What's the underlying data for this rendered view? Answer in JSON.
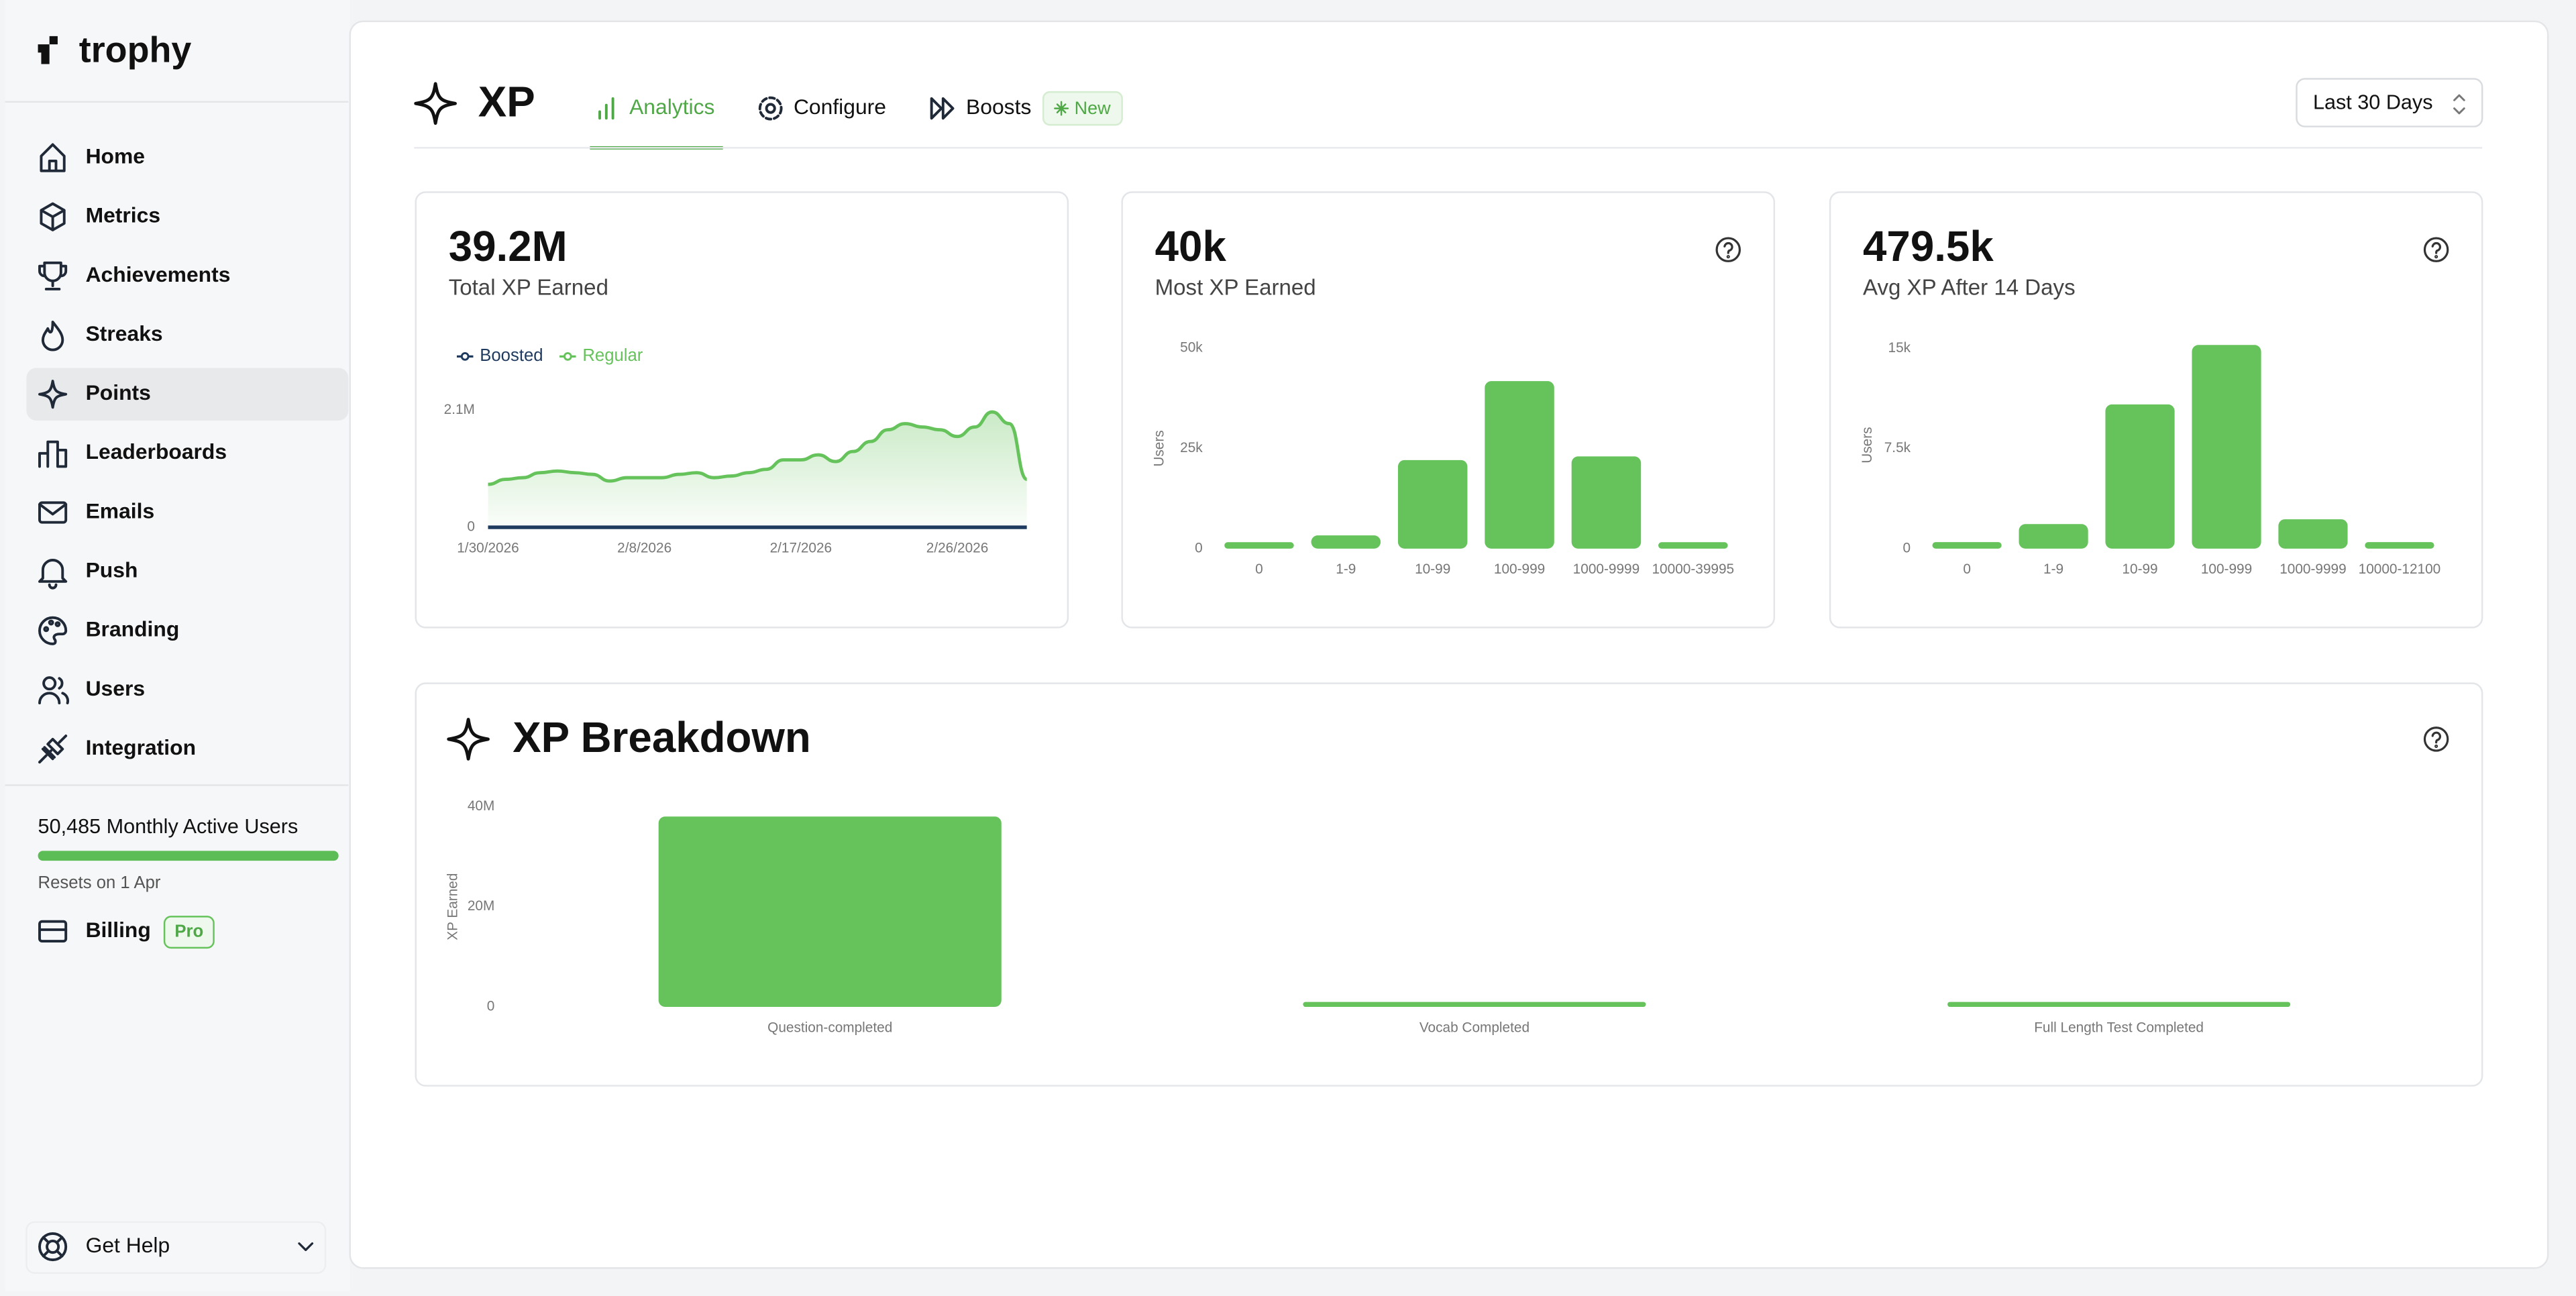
{
  "sidebar": {
    "logo": "trophy",
    "nav": [
      "Home",
      "Metrics",
      "Achievements",
      "Streaks",
      "Points",
      "Leaderboards",
      "Emails",
      "Push",
      "Branding",
      "Users",
      "Integration"
    ],
    "mau": "50,485 Monthly Active Users",
    "resets": "Resets on 1 Apr",
    "billing": "Billing",
    "billing_badge": "Pro",
    "help": "Get Help"
  },
  "header": {
    "title": "XP",
    "tabs": [
      "Analytics",
      "Configure",
      "Boosts"
    ],
    "badge": "New",
    "range": "Last 30 Days"
  },
  "cards": [
    {
      "value": "39.2M",
      "label": "Total XP Earned",
      "chart_data": {
        "type": "line",
        "x": [
          "1/30/2026",
          "1/31/2026",
          "2/1/2026",
          "2/2/2026",
          "2/3/2026",
          "2/4/2026",
          "2/5/2026",
          "2/6/2026",
          "2/7/2026",
          "2/8/2026",
          "2/9/2026",
          "2/10/2026",
          "2/11/2026",
          "2/12/2026",
          "2/13/2026",
          "2/14/2026",
          "2/15/2026",
          "2/16/2026",
          "2/17/2026",
          "2/18/2026",
          "2/19/2026",
          "2/20/2026",
          "2/21/2026",
          "2/22/2026",
          "2/23/2026",
          "2/24/2026",
          "2/25/2026",
          "2/26/2026",
          "2/27/2026",
          "2/28/2026",
          "3/1/2026",
          "3/2/2026"
        ],
        "xticks": [
          "1/30/2026",
          "2/8/2026",
          "2/17/2026",
          "2/26/2026"
        ],
        "series": [
          {
            "name": "Boosted",
            "color": "#1e3a5f",
            "values": [
              0,
              0,
              0,
              0,
              0,
              0,
              0,
              0,
              0,
              0,
              0,
              0,
              0,
              0,
              0,
              0,
              0,
              0,
              0,
              0,
              0,
              0,
              0,
              0,
              0,
              0,
              0,
              0,
              0,
              0,
              0,
              0
            ]
          },
          {
            "name": "Regular",
            "color": "#66c35c",
            "values": [
              770000,
              860000,
              890000,
              980000,
              1010000,
              980000,
              950000,
              830000,
              890000,
              890000,
              890000,
              950000,
              980000,
              890000,
              920000,
              980000,
              1040000,
              1210000,
              1210000,
              1300000,
              1180000,
              1360000,
              1540000,
              1750000,
              1860000,
              1800000,
              1750000,
              1630000,
              1800000,
              2070000,
              1860000,
              860000
            ]
          }
        ],
        "ylim": [
          0,
          2300000
        ],
        "yticks": [
          0,
          {
            "value": 2100000,
            "label": "2.1M"
          }
        ],
        "grid": false
      }
    },
    {
      "value": "40k",
      "label": "Most XP Earned",
      "chart_data": {
        "type": "bar",
        "ylabel": "Users",
        "categories": [
          "0",
          "1-9",
          "10-99",
          "100-999",
          "1000-9999",
          "10000-39995"
        ],
        "values": [
          1600,
          3300,
          22100,
          41800,
          23000,
          1600
        ],
        "color": "#66c35c",
        "ylim": [
          0,
          50000
        ],
        "yticks": [
          0,
          {
            "value": 25000,
            "label": "25k"
          },
          {
            "value": 50000,
            "label": "50k"
          }
        ],
        "grid": false
      }
    },
    {
      "value": "479.5k",
      "label": "Avg XP After 14 Days",
      "chart_data": {
        "type": "bar",
        "ylabel": "Users",
        "categories": [
          "0",
          "1-9",
          "10-99",
          "100-999",
          "1000-9999",
          "10000-12100"
        ],
        "values": [
          490,
          1840,
          10800,
          15250,
          2200,
          490
        ],
        "color": "#66c35c",
        "ylim": [
          0,
          15500
        ],
        "yticks": [
          0,
          {
            "value": 7500,
            "label": "7.5k"
          },
          {
            "value": 15000,
            "label": "15k"
          }
        ],
        "grid": false
      }
    }
  ],
  "breakdown": {
    "title": "XP Breakdown",
    "chart_data": {
      "type": "bar",
      "ylabel": "XP Earned",
      "categories": [
        "Question-completed",
        "Vocab Completed",
        "Full Length Test Completed"
      ],
      "values": [
        38000000,
        1000000,
        1000000
      ],
      "color": "#66c35c",
      "ylim": [
        0,
        40000000
      ],
      "yticks": [
        0,
        {
          "value": 20000000,
          "label": "20M"
        },
        {
          "value": 40000000,
          "label": "40M"
        }
      ],
      "grid": false
    }
  }
}
